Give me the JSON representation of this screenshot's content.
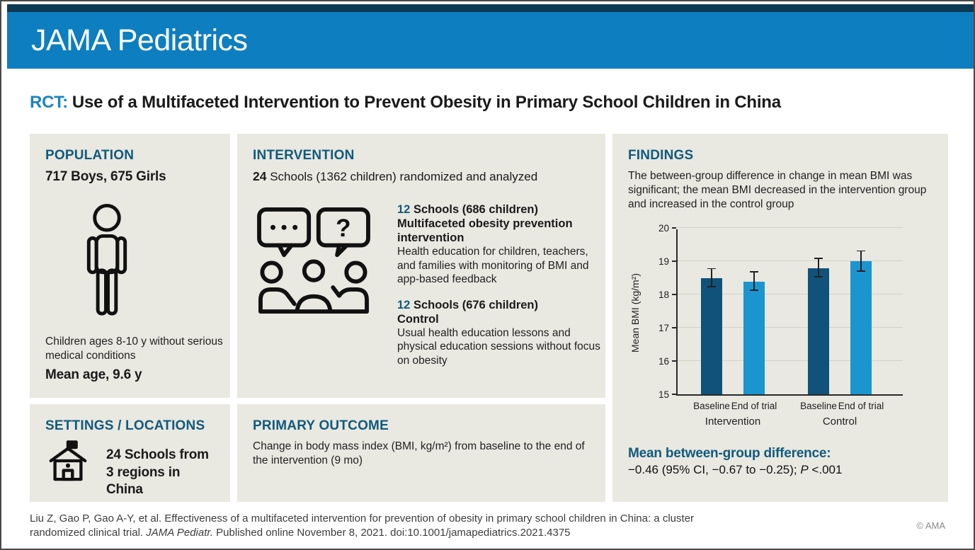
{
  "banner": {
    "title": "JAMA Pediatrics"
  },
  "title": {
    "tag": "RCT:",
    "text": "Use of a Multifaceted Intervention to Prevent Obesity in Primary School Children in China"
  },
  "population": {
    "heading": "POPULATION",
    "subtitle": "717 Boys, 675 Girls",
    "icon": "person-icon",
    "caption": "Children ages 8-10 y without serious medical conditions",
    "mean_age": "Mean age, 9.6 y"
  },
  "intervention": {
    "heading": "INTERVENTION",
    "count": "24",
    "count_rest": " Schools (1362 children) randomized and analyzed",
    "icon": "discussion-group-icon",
    "groups": [
      {
        "num": "12",
        "num_rest": " Schools (686 children)",
        "name": "Multifaceted obesity prevention intervention",
        "desc": "Health education for children, teachers, and families with monitoring of BMI and app-based feedback"
      },
      {
        "num": "12",
        "num_rest": " Schools (676 children)",
        "name": "Control",
        "desc": "Usual health education lessons and physical education sessions without focus on obesity"
      }
    ]
  },
  "settings": {
    "heading": "SETTINGS / LOCATIONS",
    "icon": "school-icon",
    "line1": "24 Schools from",
    "line2": "3 regions in China"
  },
  "primary_outcome": {
    "heading": "PRIMARY OUTCOME",
    "text": "Change in body mass index (BMI, kg/m²) from baseline to the end of the intervention (9 mo)"
  },
  "findings": {
    "heading": "FINDINGS",
    "description": "The between-group difference in change in mean BMI was significant; the mean BMI decreased in the intervention group and increased in the control group",
    "diff_heading": "Mean between-group difference:",
    "diff_value": "−0.46 (95% CI, −0.67 to −0.25); ",
    "diff_p_label": "P",
    "diff_p_value": " <.001"
  },
  "chart_data": {
    "type": "bar",
    "title": "",
    "xlabel": "",
    "ylabel": "Mean BMI (kg/m²)",
    "ylim": [
      15,
      20
    ],
    "yticks": [
      15,
      16,
      17,
      18,
      19,
      20
    ],
    "grid": true,
    "groups": [
      "Intervention",
      "Control"
    ],
    "categories": [
      "Baseline",
      "End of trial",
      "Baseline",
      "End of trial"
    ],
    "series": [
      {
        "group": "Intervention",
        "label": "Baseline",
        "value": 18.5,
        "error": 0.27,
        "color": "#10527a"
      },
      {
        "group": "Intervention",
        "label": "End of trial",
        "value": 18.4,
        "error": 0.28,
        "color": "#1b95d0"
      },
      {
        "group": "Control",
        "label": "Baseline",
        "value": 18.8,
        "error": 0.28,
        "color": "#10527a"
      },
      {
        "group": "Control",
        "label": "End of trial",
        "value": 19.0,
        "error": 0.3,
        "color": "#1b95d0"
      }
    ],
    "bar_color_dark": "#10527a",
    "bar_color_light": "#1b95d0"
  },
  "footer": {
    "citation_text1": "Liu Z, Gao P, Gao A-Y, et al. Effectiveness of a multifaceted intervention for prevention of obesity in primary school children in China: a cluster randomized clinical trial. ",
    "citation_journal": "JAMA Pediatr.",
    "citation_text2": " Published online November 8, 2021. doi:10.1001/jamapediatrics.2021.4375",
    "copyright": "© AMA"
  },
  "colors": {
    "banner_blue": "#0d7ec0",
    "top_stripe_navy": "#0c3a52",
    "heading_teal": "#115a7d",
    "title_tag_blue": "#1b84c2",
    "panel_bg": "#e9e8e1"
  }
}
